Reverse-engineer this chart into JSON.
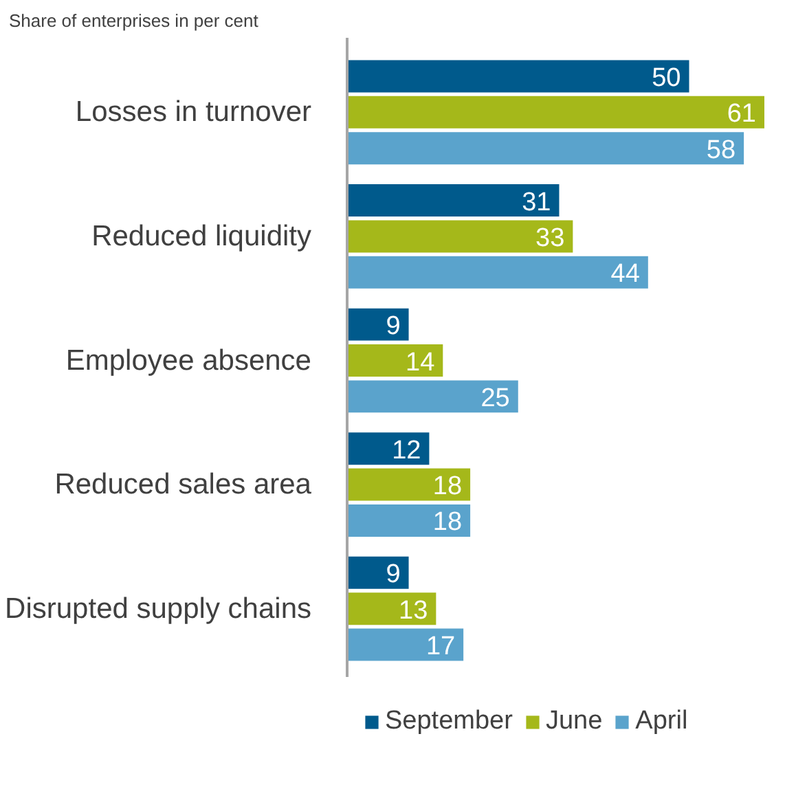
{
  "chart_data": {
    "type": "bar",
    "orientation": "horizontal",
    "title": "Share of enterprises in per cent",
    "categories": [
      "Losses in turnover",
      "Reduced liquidity",
      "Employee absence",
      "Reduced sales area",
      "Disrupted supply chains"
    ],
    "series": [
      {
        "name": "September",
        "color": "#005a8c",
        "values": [
          50,
          31,
          9,
          12,
          9
        ]
      },
      {
        "name": "June",
        "color": "#a5b81a",
        "values": [
          61,
          33,
          14,
          18,
          13
        ]
      },
      {
        "name": "April",
        "color": "#5aa3cc",
        "values": [
          58,
          44,
          25,
          18,
          17
        ]
      }
    ],
    "tick_labels": "y",
    "data_labels": true,
    "legend": "bottom",
    "grid": false
  }
}
